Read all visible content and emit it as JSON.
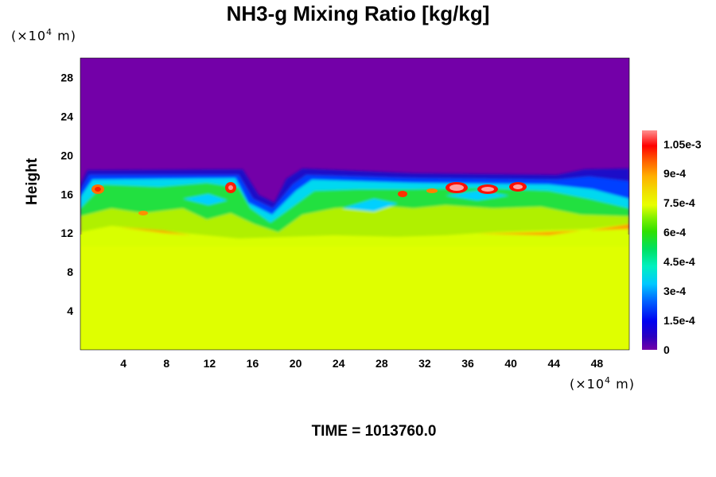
{
  "chart_data": {
    "type": "heatmap",
    "title": "NH3-g Mixing Ratio [kg/kg]",
    "ylabel": "Height",
    "x_unit_prefix": "(×10",
    "x_unit_exp": "4",
    "x_unit_suffix": " m)",
    "y_unit_prefix": "(×10",
    "y_unit_exp": "4",
    "y_unit_suffix": " m)",
    "xlim": [
      0,
      51
    ],
    "ylim": [
      0,
      30
    ],
    "xticks": [
      4,
      8,
      12,
      16,
      20,
      24,
      28,
      32,
      36,
      40,
      44,
      48
    ],
    "yticks": [
      4,
      8,
      12,
      16,
      20,
      24,
      28
    ],
    "colorbar": {
      "range": [
        0,
        0.00112
      ],
      "tick_values": [
        0,
        0.00015,
        0.0003,
        0.00045,
        0.0006,
        0.00075,
        0.0009,
        0.00105
      ],
      "tick_labels": [
        "0",
        "1.5e-4",
        "3e-4",
        "4.5e-4",
        "6e-4",
        "7.5e-4",
        "9e-4",
        "1.05e-3"
      ],
      "colors": [
        "#7300a8",
        "#2a00c0",
        "#0000f0",
        "#0060ff",
        "#00c8ff",
        "#00f0c0",
        "#00e060",
        "#30e000",
        "#80f000",
        "#c8f000",
        "#e8ff00",
        "#f0e000",
        "#ffb000",
        "#ff6000",
        "#ff0000",
        "#ff8080"
      ]
    },
    "field_regions": [
      {
        "region": "lower layer",
        "y_range": [
          0,
          11
        ],
        "value": 0.00076
      },
      {
        "region": "mixed layer",
        "y_range": [
          11,
          18
        ],
        "value": 0.0004
      },
      {
        "region": "upper layer",
        "y_range": [
          18,
          30
        ],
        "value": 0
      }
    ],
    "time_label": "TIME = 1013760.0"
  }
}
